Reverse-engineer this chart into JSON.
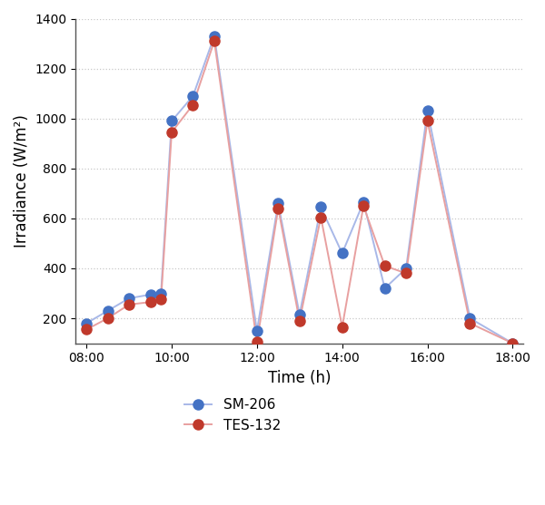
{
  "sm206_x": [
    8.0,
    8.5,
    9.0,
    9.5,
    9.75,
    10.0,
    10.5,
    11.0,
    12.0,
    12.5,
    13.0,
    13.5,
    14.0,
    14.5,
    15.0,
    15.5,
    16.0,
    17.0,
    18.0
  ],
  "sm206_y": [
    180,
    230,
    280,
    295,
    300,
    990,
    1090,
    1330,
    150,
    660,
    215,
    645,
    460,
    665,
    320,
    400,
    1030,
    200,
    100
  ],
  "tes132_x": [
    8.0,
    8.5,
    9.0,
    9.5,
    9.75,
    10.0,
    10.5,
    11.0,
    12.0,
    12.5,
    13.0,
    13.5,
    14.0,
    14.5,
    15.0,
    15.5,
    16.0,
    17.0,
    18.0
  ],
  "tes132_y": [
    155,
    200,
    255,
    265,
    275,
    945,
    1055,
    1310,
    105,
    640,
    190,
    605,
    165,
    650,
    410,
    380,
    990,
    180,
    100
  ],
  "sm206_line_color": "#a8b8e8",
  "sm206_marker_color": "#4472c4",
  "tes132_line_color": "#e8a0a0",
  "tes132_marker_color": "#c0392b",
  "sm206_label": "SM-206",
  "tes132_label": "TES-132",
  "xlabel": "Time (h)",
  "ylabel": "Irradiance (W/m²)",
  "xlim": [
    7.75,
    18.25
  ],
  "ylim": [
    100,
    1400
  ],
  "xticks": [
    8,
    10,
    12,
    14,
    16,
    18
  ],
  "xtick_labels": [
    "08:00",
    "10:00",
    "12:00",
    "14:00",
    "16:00",
    "18:00"
  ],
  "yticks": [
    200,
    400,
    600,
    800,
    1000,
    1200,
    1400
  ],
  "grid_color": "#c8c8c8",
  "background_color": "#ffffff",
  "marker_size": 8,
  "linewidth": 1.4,
  "spine_color": "#555555"
}
